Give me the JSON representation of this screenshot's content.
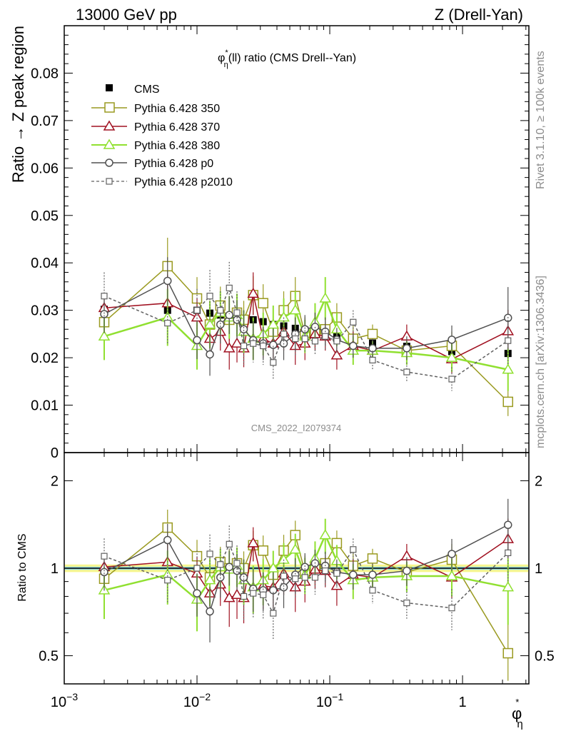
{
  "header": {
    "left": "13000 GeV pp",
    "right": "Z (Drell-Yan)"
  },
  "side_labels": {
    "rivet": "Rivet 3.1.10, ≥ 100k events",
    "mcplots": "mcplots.cern.ch [arXiv:1306.3436]"
  },
  "watermark": "CMS_2022_I2079374",
  "chart_data": [
    {
      "type": "line",
      "title_main": "φ",
      "title_sup": "*",
      "title_sub": "η",
      "title_rest": "(ll) ratio (CMS Drell--Yan)",
      "ylabel": "Ratio → Z peak region",
      "xscale": "log",
      "xlim": [
        0.001,
        3.16
      ],
      "ylim": [
        0,
        0.09
      ],
      "yticks": [
        0,
        0.01,
        0.02,
        0.03,
        0.04,
        0.05,
        0.06,
        0.07,
        0.08
      ],
      "ytick_labels": [
        "0",
        "0.01",
        "0.02",
        "0.03",
        "0.04",
        "0.05",
        "0.06",
        "0.07",
        "0.08"
      ],
      "x": [
        0.002,
        0.006,
        0.01,
        0.0125,
        0.015,
        0.0175,
        0.02,
        0.0225,
        0.0265,
        0.0315,
        0.0375,
        0.045,
        0.055,
        0.065,
        0.0775,
        0.0925,
        0.113,
        0.15,
        0.21,
        0.38,
        0.83,
        2.2
      ],
      "series": [
        {
          "name": "CMS",
          "color": "#000000",
          "marker": "filled-square",
          "line": "none",
          "values": [
            0.0302,
            0.03,
            0.03,
            0.0294,
            0.029,
            0.0286,
            0.0285,
            0.028,
            0.028,
            0.0276,
            0.027,
            0.0267,
            0.0262,
            0.0258,
            0.0254,
            0.025,
            0.0245,
            0.0237,
            0.0231,
            0.0224,
            0.0213,
            0.0209
          ]
        },
        {
          "name": "Pythia 6.428 350",
          "color": "#9a9a20",
          "marker": "open-square",
          "line": "solid",
          "values": [
            0.0275,
            0.0393,
            0.0325,
            0.027,
            0.031,
            0.028,
            0.0295,
            0.028,
            0.0332,
            0.0315,
            0.0255,
            0.03,
            0.033,
            0.025,
            0.0255,
            0.026,
            0.0285,
            0.024,
            0.025,
            0.0215,
            0.0225,
            0.0107
          ],
          "errors": [
            0.003,
            0.006,
            0.0045,
            0.005,
            0.004,
            0.0045,
            0.004,
            0.004,
            0.004,
            0.004,
            0.0035,
            0.004,
            0.004,
            0.0035,
            0.0035,
            0.003,
            0.003,
            0.003,
            0.002,
            0.002,
            0.003,
            0.003
          ]
        },
        {
          "name": "Pythia 6.428 370",
          "color": "#a01020",
          "marker": "open-triangle",
          "line": "solid",
          "values": [
            0.0305,
            0.0315,
            0.0285,
            0.024,
            0.0255,
            0.022,
            0.023,
            0.022,
            0.0335,
            0.024,
            0.023,
            0.0255,
            0.0225,
            0.023,
            0.025,
            0.0245,
            0.0205,
            0.0225,
            0.0215,
            0.0245,
            0.0197,
            0.0256
          ],
          "errors": [
            0.003,
            0.006,
            0.004,
            0.004,
            0.004,
            0.0045,
            0.004,
            0.004,
            0.0045,
            0.004,
            0.0035,
            0.004,
            0.004,
            0.0035,
            0.0035,
            0.003,
            0.003,
            0.003,
            0.002,
            0.0025,
            0.003,
            0.0045
          ]
        },
        {
          "name": "Pythia 6.428 380",
          "color": "#90e030",
          "marker": "open-triangle",
          "line": "solid",
          "values": [
            0.0245,
            0.0285,
            0.0225,
            0.027,
            0.0295,
            0.0285,
            0.029,
            0.0255,
            0.024,
            0.025,
            0.027,
            0.0285,
            0.03,
            0.0245,
            0.0275,
            0.0325,
            0.026,
            0.0215,
            0.0215,
            0.021,
            0.02,
            0.0175
          ],
          "errors": [
            0.005,
            0.006,
            0.005,
            0.005,
            0.0045,
            0.0045,
            0.0045,
            0.0045,
            0.0045,
            0.0045,
            0.004,
            0.004,
            0.004,
            0.0035,
            0.004,
            0.0045,
            0.0035,
            0.003,
            0.002,
            0.0025,
            0.003,
            0.0045
          ]
        },
        {
          "name": "Pythia 6.428 p0",
          "color": "#505050",
          "marker": "open-circle",
          "line": "solid",
          "values": [
            0.0292,
            0.0362,
            0.0237,
            0.0207,
            0.027,
            0.029,
            0.028,
            0.026,
            0.0237,
            0.023,
            0.0227,
            0.023,
            0.025,
            0.026,
            0.0265,
            0.0255,
            0.0238,
            0.0225,
            0.022,
            0.022,
            0.0238,
            0.0284
          ],
          "errors": [
            0.004,
            0.005,
            0.004,
            0.0045,
            0.004,
            0.004,
            0.004,
            0.004,
            0.004,
            0.0035,
            0.0035,
            0.0035,
            0.0035,
            0.003,
            0.003,
            0.003,
            0.0025,
            0.0025,
            0.002,
            0.0025,
            0.003,
            0.0065
          ]
        },
        {
          "name": "Pythia 6.428 p2010",
          "color": "#606060",
          "marker": "open-square-small",
          "line": "dashed",
          "values": [
            0.033,
            0.0273,
            0.03,
            0.033,
            0.03,
            0.0347,
            0.0295,
            0.0225,
            0.023,
            0.0225,
            0.019,
            0.025,
            0.024,
            0.024,
            0.0235,
            0.0245,
            0.0235,
            0.0275,
            0.0195,
            0.017,
            0.0155,
            0.0236
          ],
          "errors": [
            0.005,
            0.0045,
            0.0045,
            0.0055,
            0.004,
            0.0055,
            0.0045,
            0.004,
            0.004,
            0.004,
            0.0035,
            0.0035,
            0.0035,
            0.003,
            0.003,
            0.003,
            0.0025,
            0.0025,
            0.002,
            0.002,
            0.0025,
            0.005
          ]
        }
      ]
    },
    {
      "type": "line",
      "ylabel": "Ratio to CMS",
      "xlabel_main": "φ",
      "xlabel_sup": "*",
      "xlabel_sub": "η",
      "xscale": "log",
      "yscale": "log",
      "xlim": [
        0.001,
        3.16
      ],
      "ylim": [
        0.4,
        2.5
      ],
      "yticks": [
        0.5,
        1,
        2
      ],
      "ytick_labels": [
        "0.5",
        "1",
        "2"
      ],
      "xticks": [
        0.001,
        0.01,
        0.1,
        1
      ],
      "xtick_mantissa": [
        "10",
        "10",
        "10",
        "1"
      ],
      "xtick_exponent": [
        "−3",
        "−2",
        "−1",
        ""
      ],
      "x": [
        0.002,
        0.006,
        0.01,
        0.0125,
        0.015,
        0.0175,
        0.02,
        0.0225,
        0.0265,
        0.0315,
        0.0375,
        0.045,
        0.055,
        0.065,
        0.0775,
        0.0925,
        0.113,
        0.15,
        0.21,
        0.38,
        0.83,
        2.2
      ],
      "series": [
        {
          "name": "Pythia 6.428 350",
          "values": [
            0.92,
            1.38,
            1.1,
            0.93,
            1.05,
            1.0,
            1.04,
            1.0,
            1.2,
            1.15,
            0.95,
            1.15,
            1.3,
            0.97,
            1.01,
            1.04,
            1.22,
            1.02,
            1.08,
            0.97,
            1.07,
            0.51
          ]
        },
        {
          "name": "Pythia 6.428 370",
          "values": [
            1.01,
            1.05,
            0.96,
            0.82,
            0.88,
            0.79,
            0.81,
            0.79,
            1.22,
            0.87,
            0.86,
            0.96,
            0.86,
            0.9,
            0.99,
            0.98,
            0.87,
            0.95,
            0.93,
            1.1,
            0.93,
            1.26
          ]
        },
        {
          "name": "Pythia 6.428 380",
          "values": [
            0.84,
            0.95,
            0.78,
            0.91,
            1.01,
            0.99,
            1.02,
            0.91,
            0.86,
            0.91,
            1.0,
            1.07,
            1.16,
            0.95,
            1.08,
            1.3,
            1.06,
            0.91,
            0.93,
            0.94,
            0.94,
            0.86
          ]
        },
        {
          "name": "Pythia 6.428 p0",
          "values": [
            0.97,
            1.25,
            0.82,
            0.71,
            0.93,
            1.01,
            0.98,
            0.93,
            0.85,
            0.84,
            0.84,
            0.86,
            0.95,
            1.01,
            1.04,
            1.02,
            0.97,
            0.95,
            0.95,
            0.98,
            1.12,
            1.41
          ]
        },
        {
          "name": "Pythia 6.428 p2010",
          "values": [
            1.1,
            0.91,
            1.0,
            1.12,
            1.03,
            1.21,
            1.04,
            0.8,
            0.82,
            0.81,
            0.7,
            0.94,
            0.92,
            0.93,
            0.93,
            0.98,
            0.96,
            1.16,
            0.84,
            0.76,
            0.73,
            1.13
          ]
        }
      ]
    }
  ]
}
